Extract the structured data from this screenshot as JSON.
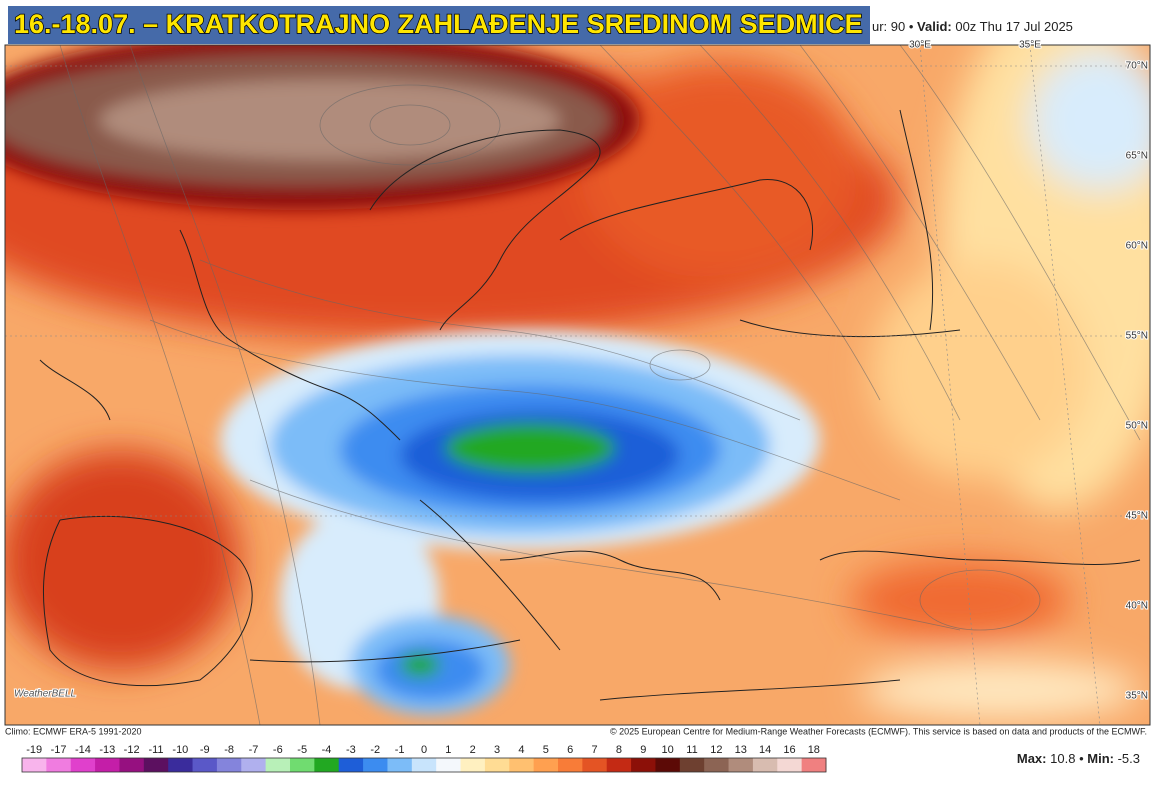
{
  "header": {
    "title": "16.-18.07. – KRATKOTRAJNO ZAHLAĐENJE SREDINOM SEDMICE",
    "hour": "ur: 90 •",
    "valid_label": "Valid:",
    "valid": "00z Thu 17 Jul 2025"
  },
  "map": {
    "lat_labels": [
      "70°N",
      "65°N",
      "60°N",
      "55°N",
      "50°N",
      "45°N",
      "40°N",
      "35°N"
    ],
    "lon_labels": [
      "30°E",
      "35°E"
    ],
    "logo": "WeatherBELL"
  },
  "footer": {
    "climo": "Climo: ECMWF ERA-5 1991-2020",
    "copyright": "© 2025 European Centre for Medium-Range Weather Forecasts (ECMWF). This service is based on data and products of the ECMWF."
  },
  "legend": {
    "items": [
      {
        "label": -19,
        "color": "#f8b4ec"
      },
      {
        "label": -17,
        "color": "#f07ce0"
      },
      {
        "label": -14,
        "color": "#e040cc"
      },
      {
        "label": -13,
        "color": "#c41ea8"
      },
      {
        "label": -12,
        "color": "#961080"
      },
      {
        "label": -11,
        "color": "#5c1060"
      },
      {
        "label": -10,
        "color": "#3a2c9c"
      },
      {
        "label": -9,
        "color": "#5a58c8"
      },
      {
        "label": -8,
        "color": "#8484dc"
      },
      {
        "label": -7,
        "color": "#b0b0ee"
      },
      {
        "label": -6,
        "color": "#b8f0b8"
      },
      {
        "label": -5,
        "color": "#70dc70"
      },
      {
        "label": -4,
        "color": "#22a822"
      },
      {
        "label": -3,
        "color": "#1e5ed8"
      },
      {
        "label": -2,
        "color": "#3c8cf0"
      },
      {
        "label": -1,
        "color": "#7cbcf8"
      },
      {
        "label": 0,
        "color": "#c8e4fc"
      },
      {
        "label": 1,
        "color": "#f4f8fc"
      },
      {
        "label": 2,
        "color": "#fff0c0"
      },
      {
        "label": 3,
        "color": "#ffdc94"
      },
      {
        "label": 4,
        "color": "#ffc070"
      },
      {
        "label": 5,
        "color": "#ffa050"
      },
      {
        "label": 6,
        "color": "#f87c38"
      },
      {
        "label": 7,
        "color": "#e45424"
      },
      {
        "label": 8,
        "color": "#c42a14"
      },
      {
        "label": 9,
        "color": "#8c1008"
      },
      {
        "label": 10,
        "color": "#5c0a06"
      },
      {
        "label": 11,
        "color": "#6e4030"
      },
      {
        "label": 12,
        "color": "#8c6454"
      },
      {
        "label": 13,
        "color": "#b08c7c"
      },
      {
        "label": 14,
        "color": "#d8bcb0"
      },
      {
        "label": 16,
        "color": "#f4d8d4"
      },
      {
        "label": 18,
        "color": "#f08080"
      }
    ]
  },
  "stats": {
    "max_label": "Max:",
    "max": 10.8,
    "separator": "•",
    "min_label": "Min:",
    "min": -5.3
  }
}
